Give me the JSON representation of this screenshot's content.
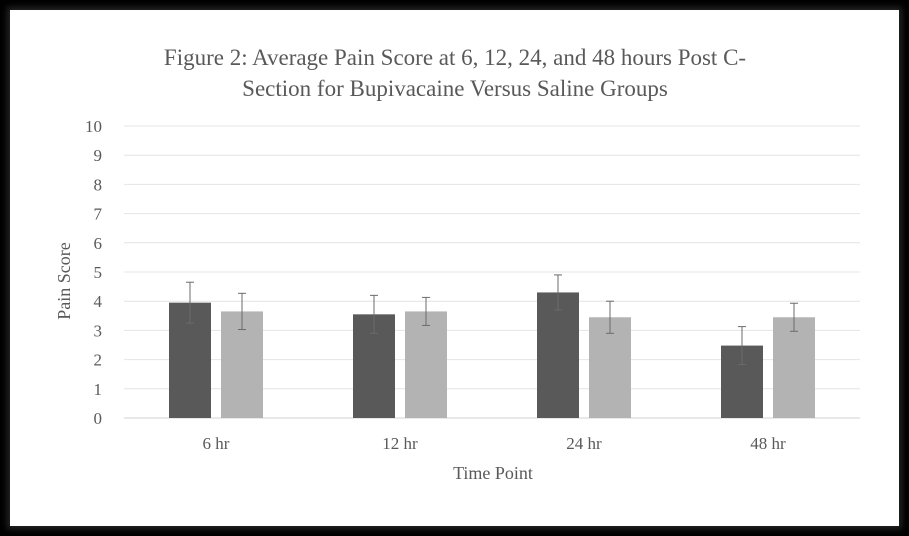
{
  "chart_data": {
    "type": "bar",
    "title": "Figure 2: Average Pain Score at 6, 12, 24, and 48 hours Post C-Section for Bupivacaine Versus Saline Groups",
    "title_lines": [
      "Figure 2: Average Pain Score at 6, 12, 24, and 48 hours Post C-",
      "Section for Bupivacaine Versus Saline Groups"
    ],
    "xlabel": "Time Point",
    "ylabel": "Pain Score",
    "categories": [
      "6 hr",
      "12 hr",
      "24 hr",
      "48 hr"
    ],
    "ylim": [
      0,
      10
    ],
    "yticks": [
      "0",
      "1",
      "2",
      "3",
      "4",
      "5",
      "6",
      "7",
      "8",
      "9",
      "10"
    ],
    "grid": true,
    "legend": "none",
    "series": [
      {
        "color": "#595959",
        "values": [
          3.95,
          3.55,
          4.3,
          2.48
        ],
        "error": [
          0.7,
          0.65,
          0.6,
          0.65
        ]
      },
      {
        "color": "#b3b3b3",
        "values": [
          3.65,
          3.65,
          3.45,
          3.45
        ],
        "error": [
          0.62,
          0.48,
          0.55,
          0.48
        ]
      }
    ]
  }
}
